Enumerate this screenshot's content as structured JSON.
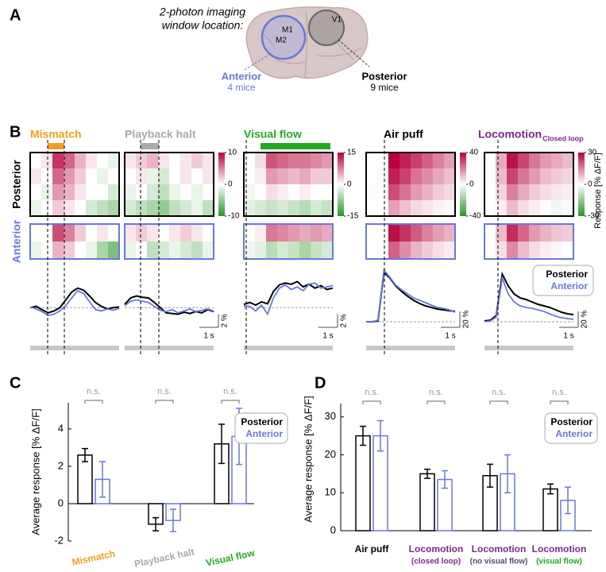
{
  "panel_labels": [
    "A",
    "B",
    "C",
    "D"
  ],
  "brain": {
    "title": [
      "2-photon imaging",
      "window location:"
    ],
    "areas": [
      "M1",
      "M2",
      "V1"
    ],
    "anterior": {
      "label": "Anterior",
      "count": "4 mice"
    },
    "posterior": {
      "label": "Posterior",
      "count": "9 mice"
    }
  },
  "panel_b": {
    "row_labels": [
      "Posterior",
      "Anterior"
    ],
    "colorbar_label": "Response [% ΔF/F]",
    "legend": [
      "Posterior",
      "Anterior"
    ]
  },
  "chart_data": [
    {
      "type": "heatmap",
      "title": "Mismatch",
      "title_color": "#f0a020",
      "clim": [
        -10,
        10
      ],
      "posterior": [
        [
          0,
          1,
          8,
          6,
          3,
          1,
          0,
          -1
        ],
        [
          1,
          0,
          6,
          4,
          2,
          0,
          -1,
          0
        ],
        [
          0,
          -1,
          4,
          3,
          1,
          0,
          0,
          -2
        ],
        [
          -1,
          0,
          2,
          1,
          0,
          -2,
          -3,
          -4
        ]
      ],
      "anterior": [
        [
          0,
          0,
          7,
          5,
          2,
          0,
          1,
          0
        ],
        [
          -1,
          0,
          3,
          2,
          0,
          -1,
          -4,
          -6
        ]
      ],
      "ylim": [
        -4,
        7
      ],
      "series": [
        {
          "color": "#000000",
          "values": [
            0,
            0.2,
            -0.3,
            -0.8,
            -0.5,
            0,
            1.2,
            2.4,
            3.0,
            2.7,
            1.8,
            0.8,
            0.2,
            -0.2,
            0,
            0.1
          ]
        },
        {
          "color": "#6a78dc",
          "values": [
            0.1,
            -0.2,
            -0.6,
            -1.2,
            -1.0,
            -0.5,
            0.3,
            1.5,
            2.6,
            2.2,
            0.9,
            -0.3,
            -0.5,
            -0.2,
            -0.4,
            -0.1
          ]
        }
      ]
    },
    {
      "type": "heatmap",
      "title": "Playback halt",
      "title_color": "#aaaaaa",
      "clim": [
        -10,
        10
      ],
      "cticks": [
        10,
        0,
        -10
      ],
      "posterior": [
        [
          1,
          2,
          3,
          1,
          0,
          1,
          2,
          1
        ],
        [
          0,
          1,
          -1,
          -2,
          0,
          1,
          0,
          1
        ],
        [
          -1,
          0,
          -2,
          -3,
          -1,
          0,
          -1,
          0
        ],
        [
          -2,
          -3,
          -4,
          -5,
          -3,
          -2,
          -1,
          -3
        ]
      ],
      "anterior": [
        [
          1,
          2,
          1,
          0,
          1,
          2,
          1,
          0
        ],
        [
          -1,
          0,
          -3,
          -2,
          -1,
          -2,
          -3,
          -1
        ]
      ],
      "ylim": [
        -4,
        7
      ],
      "scalebar_y": {
        "value": 2,
        "label": "2 %"
      },
      "scalebar_x": "1 s",
      "series": [
        {
          "color": "#000000",
          "values": [
            0.5,
            1.5,
            1.8,
            1.6,
            1.5,
            0.8,
            0,
            -0.8,
            -0.9,
            -1.0,
            -0.7,
            -0.9,
            -0.6,
            -0.8,
            -0.3,
            -0.6
          ]
        },
        {
          "color": "#6a78dc",
          "values": [
            0.3,
            1.0,
            1.2,
            1.0,
            0.8,
            0.2,
            -0.4,
            -0.6,
            -0.3,
            -0.8,
            -0.5,
            -0.2,
            -0.6,
            -0.4,
            -0.2,
            -0.5
          ]
        }
      ]
    },
    {
      "type": "heatmap",
      "title": "Visual flow",
      "title_color": "#22aa22",
      "clim": [
        -15,
        15
      ],
      "cticks": [
        15,
        0,
        -15
      ],
      "posterior": [
        [
          0,
          2,
          10,
          9,
          8,
          8,
          7,
          6
        ],
        [
          0,
          1,
          6,
          5,
          4,
          5,
          3,
          3
        ],
        [
          -1,
          0,
          2,
          1,
          0,
          1,
          0,
          0
        ],
        [
          -2,
          -3,
          -4,
          -3,
          -4,
          -5,
          -3,
          -4
        ]
      ],
      "anterior": [
        [
          0,
          1,
          8,
          7,
          6,
          5,
          6,
          5
        ],
        [
          -1,
          -2,
          -5,
          -3,
          -4,
          -6,
          -4,
          -3
        ]
      ],
      "ylim": [
        -4,
        7
      ],
      "scalebar_y": {
        "value": 2,
        "label": "2 %"
      },
      "scalebar_x": "1 s",
      "series": [
        {
          "color": "#000000",
          "values": [
            0.5,
            0.8,
            0.4,
            0.9,
            0.6,
            2.5,
            3.5,
            3.8,
            3.6,
            4.0,
            3.2,
            3.6,
            3.0,
            3.4,
            2.8,
            3.0
          ]
        },
        {
          "color": "#6a78dc",
          "values": [
            0.3,
            0.2,
            -0.5,
            0.4,
            -1.0,
            1.5,
            3.0,
            3.5,
            2.8,
            3.2,
            2.6,
            3.6,
            3.8,
            3.0,
            3.2,
            3.4
          ]
        }
      ]
    },
    {
      "type": "heatmap",
      "title": "Air puff",
      "title_color": "#000000",
      "clim": [
        -40,
        40
      ],
      "cticks": [
        40,
        0,
        -40
      ],
      "posterior": [
        [
          0,
          0,
          40,
          35,
          30,
          25,
          20,
          15
        ],
        [
          0,
          1,
          35,
          30,
          22,
          18,
          14,
          10
        ],
        [
          -1,
          0,
          28,
          22,
          16,
          12,
          8,
          6
        ],
        [
          0,
          0,
          15,
          10,
          6,
          4,
          2,
          1
        ]
      ],
      "anterior": [
        [
          0,
          0,
          38,
          32,
          26,
          20,
          15,
          12
        ],
        [
          0,
          -1,
          25,
          18,
          12,
          8,
          5,
          3
        ]
      ],
      "ylim": [
        -15,
        75
      ],
      "scalebar_y": {
        "value": 20,
        "label": "20 %"
      },
      "scalebar_x": "1 s",
      "series": [
        {
          "color": "#000000",
          "values": [
            0,
            0,
            1,
            62,
            55,
            45,
            38,
            32,
            27,
            23,
            20,
            18,
            16,
            15,
            14,
            13
          ]
        },
        {
          "color": "#6a78dc",
          "values": [
            0,
            0,
            2,
            65,
            56,
            46,
            40,
            35,
            30,
            27,
            24,
            21,
            18,
            17,
            15,
            12
          ]
        }
      ]
    },
    {
      "type": "heatmap",
      "title": "Locomotion",
      "title_sub": "Closed loop",
      "title_color": "#7a2a8a",
      "clim": [
        -30,
        30
      ],
      "cticks": [
        30,
        0,
        -30
      ],
      "posterior": [
        [
          0,
          10,
          28,
          22,
          16,
          12,
          10,
          8
        ],
        [
          0,
          8,
          22,
          16,
          12,
          8,
          6,
          5
        ],
        [
          0,
          5,
          15,
          10,
          6,
          4,
          3,
          2
        ],
        [
          0,
          2,
          8,
          4,
          2,
          0,
          -2,
          -1
        ]
      ],
      "anterior": [
        [
          0,
          8,
          25,
          18,
          12,
          9,
          7,
          6
        ],
        [
          0,
          4,
          14,
          8,
          4,
          2,
          1,
          0
        ]
      ],
      "ylim": [
        -15,
        75
      ],
      "scalebar_y": {
        "value": 20,
        "label": "20 %"
      },
      "scalebar_x": "1 s",
      "series": [
        {
          "color": "#000000",
          "values": [
            1,
            2,
            8,
            60,
            45,
            35,
            30,
            28,
            25,
            22,
            20,
            18,
            15,
            12,
            10,
            9
          ]
        },
        {
          "color": "#6a78dc",
          "values": [
            0,
            1,
            6,
            55,
            35,
            25,
            20,
            18,
            17,
            15,
            13,
            10,
            7,
            5,
            4,
            3
          ]
        }
      ]
    },
    {
      "type": "bar",
      "y_label": "Average response [% ΔF/F]",
      "categories": [
        "Mismatch",
        "Playback halt",
        "Visual flow"
      ],
      "category_colors": [
        "#f0a020",
        "#aaaaaa",
        "#22aa22"
      ],
      "annotations": [
        "n.s.",
        "n.s.",
        "n.s."
      ],
      "ylim": [
        -2,
        5.4
      ],
      "yticks": [
        -2,
        0,
        2,
        4
      ],
      "series": [
        {
          "name": "Posterior",
          "color": "#000000",
          "values": [
            2.6,
            -1.1,
            3.2
          ],
          "errors": [
            0.35,
            0.35,
            1.05
          ]
        },
        {
          "name": "Anterior",
          "color": "#6a78dc",
          "values": [
            1.3,
            -0.9,
            3.6
          ],
          "errors": [
            0.95,
            0.6,
            1.5
          ]
        }
      ]
    },
    {
      "type": "bar",
      "y_label": "Average response [% ΔF/F]",
      "categories": [
        "Air puff",
        "Locomotion",
        "Locomotion",
        "Locomotion"
      ],
      "category_colors": [
        "#000000",
        "#7a2a8a",
        "#7a2a8a",
        "#7a2a8a"
      ],
      "category_sublabels": [
        null,
        "(closed loop)",
        "(no visual flow)",
        "(visual flow)"
      ],
      "sublabel_colors": [
        null,
        "#7a2a8a",
        "#5a4a6a",
        "#22aa22"
      ],
      "annotations": [
        "n.s.",
        "n.s.",
        "n.s.",
        "n.s."
      ],
      "ylim": [
        0,
        33.5
      ],
      "yticks": [
        0,
        10,
        20,
        30
      ],
      "series": [
        {
          "name": "Posterior",
          "color": "#000000",
          "values": [
            25,
            15,
            14.5,
            11
          ],
          "errors": [
            2.5,
            1.2,
            3,
            1.3
          ]
        },
        {
          "name": "Anterior",
          "color": "#6a78dc",
          "values": [
            25,
            13.5,
            15,
            8
          ],
          "errors": [
            4,
            2.3,
            5,
            3.5
          ]
        }
      ]
    }
  ]
}
